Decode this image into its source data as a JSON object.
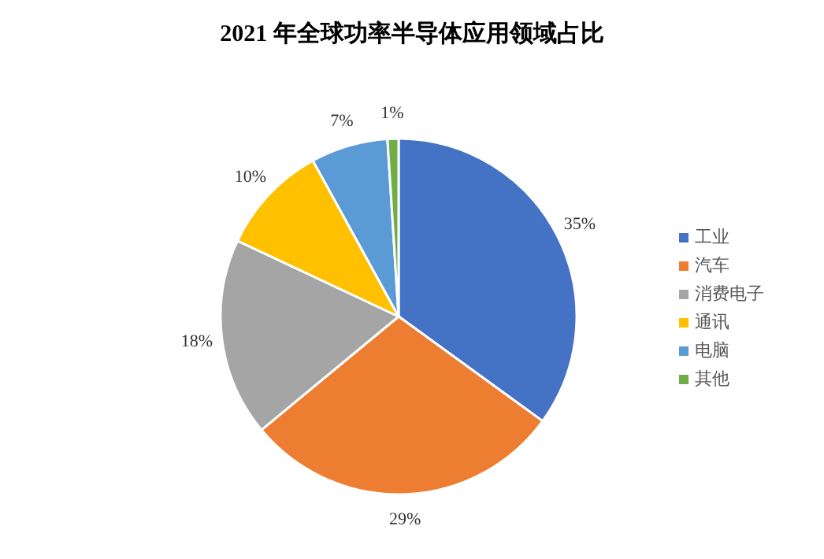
{
  "chart_data": {
    "type": "pie",
    "title": "2021 年全球功率半导体应用领域占比",
    "categories": [
      "工业",
      "汽车",
      "消费电子",
      "通讯",
      "电脑",
      "其他"
    ],
    "values": [
      35,
      29,
      18,
      10,
      7,
      1
    ],
    "colors": [
      "#4472c4",
      "#ed7d31",
      "#a5a5a5",
      "#ffc000",
      "#5b9bd5",
      "#70ad47"
    ],
    "value_labels": [
      "35%",
      "29%",
      "18%",
      "10%",
      "7%",
      "1%"
    ],
    "legend": "right"
  }
}
